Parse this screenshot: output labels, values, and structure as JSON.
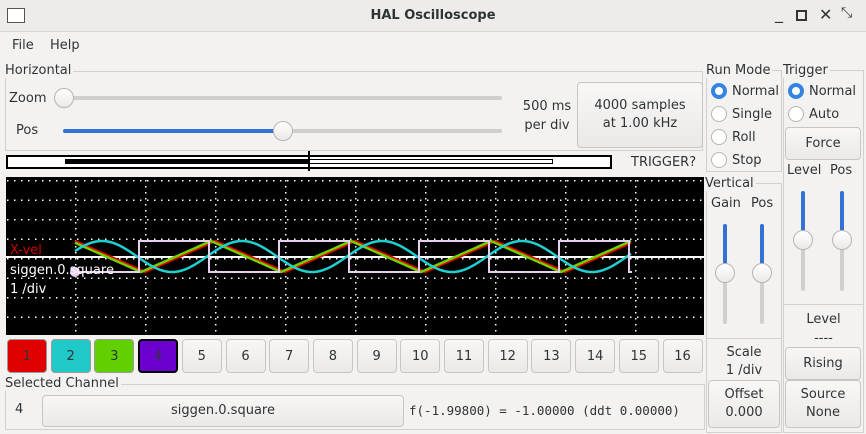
{
  "window": {
    "title": "HAL Oscilloscope"
  },
  "menu": [
    "File",
    "Help"
  ],
  "horizontal": {
    "label": "Horizontal",
    "zoom_label": "Zoom",
    "pos_label": "Pos",
    "zoom_value": 0,
    "pos_value": 0.5,
    "rate_line1": "500 ms",
    "rate_line2": "per div",
    "samples_line1": "4000 samples",
    "samples_line2": "at 1.00 kHz",
    "trigger_status": "TRIGGER?"
  },
  "plot": {
    "labels": [
      {
        "text": "X-vel",
        "color": "#d00000"
      },
      {
        "text": "siggen.0.square",
        "color": "#ffffff"
      },
      {
        "text": "1 /div",
        "color": "#ffffff"
      }
    ],
    "trace_colors": {
      "ch1": "#e00000",
      "ch2": "#20d0d0",
      "ch3": "#70d000",
      "ch4": "#e8d0f0"
    }
  },
  "channels": [
    {
      "label": "1",
      "color": "#e00000"
    },
    {
      "label": "2",
      "color": "#20c8c8"
    },
    {
      "label": "3",
      "color": "#60d000"
    },
    {
      "label": "4",
      "color": "#6c00d0"
    },
    {
      "label": "5"
    },
    {
      "label": "6"
    },
    {
      "label": "7"
    },
    {
      "label": "8"
    },
    {
      "label": "9"
    },
    {
      "label": "10"
    },
    {
      "label": "11"
    },
    {
      "label": "12"
    },
    {
      "label": "13"
    },
    {
      "label": "14"
    },
    {
      "label": "15"
    },
    {
      "label": "16"
    }
  ],
  "selected": {
    "label": "Selected Channel",
    "number": "4",
    "name": "siggen.0.square",
    "readout": "f(-1.99800) = -1.00000 (ddt  0.00000)"
  },
  "run_mode": {
    "label": "Run Mode",
    "options": [
      "Normal",
      "Single",
      "Roll",
      "Stop"
    ],
    "selected": "Normal"
  },
  "vertical": {
    "label": "Vertical",
    "gain_label": "Gain",
    "pos_label": "Pos",
    "gain_value": 0.5,
    "pos_value": 0.5,
    "scale_label": "Scale",
    "scale_value": "1 /div",
    "offset_label": "Offset",
    "offset_value": "0.000"
  },
  "trigger": {
    "label": "Trigger",
    "options": [
      "Normal",
      "Auto"
    ],
    "selected": "Normal",
    "force_label": "Force",
    "level_label": "Level",
    "pos_label": "Pos",
    "level_value": 0.5,
    "pos_value": 0.5,
    "level_title": "Level",
    "level_readout": "----",
    "edge_label": "Rising",
    "source_label": "Source",
    "source_value": "None"
  }
}
